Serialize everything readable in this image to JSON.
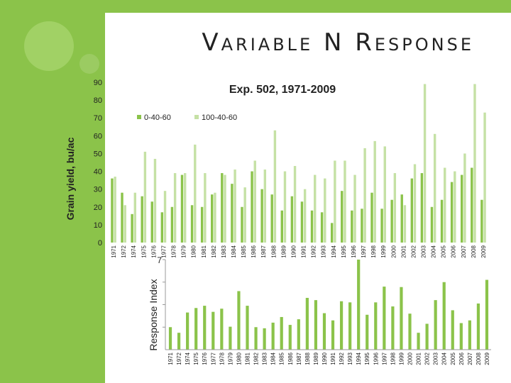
{
  "slide": {
    "title": "Variable N Response",
    "colors": {
      "sidebar": "#8bc34a",
      "bar_dark": "#8bc34a",
      "bar_light": "#c5e1a5"
    }
  },
  "chart_data": [
    {
      "type": "bar",
      "title": "Exp. 502, 1971-2009",
      "ylabel": "Grain yield, bu/ac",
      "xlabel": "",
      "ylim": [
        0,
        90
      ],
      "yticks": [
        0,
        10,
        20,
        30,
        40,
        50,
        60,
        70,
        80,
        90
      ],
      "grid": false,
      "legend_position": "top-center",
      "categories": [
        "1971",
        "1972",
        "1974",
        "1975",
        "1976",
        "1977",
        "1978",
        "1979",
        "1980",
        "1981",
        "1982",
        "1983",
        "1984",
        "1985",
        "1986",
        "1987",
        "1988",
        "1989",
        "1990",
        "1991",
        "1992",
        "1993",
        "1994",
        "1995",
        "1996",
        "1997",
        "1998",
        "1999",
        "2000",
        "2001",
        "2002",
        "2003",
        "2004",
        "2005",
        "2006",
        "2007",
        "2008",
        "2009"
      ],
      "series": [
        {
          "name": "0-40-60",
          "color": "#8bc34a",
          "values": [
            36,
            28,
            16,
            26,
            23,
            17,
            20,
            38,
            21,
            20,
            27,
            39,
            33,
            20,
            40,
            30,
            27,
            18,
            26,
            23,
            18,
            17,
            11,
            29,
            18,
            19,
            28,
            19,
            24,
            27,
            36,
            39,
            20,
            24,
            34,
            38,
            42,
            24
          ]
        },
        {
          "name": "100-40-60",
          "color": "#c5e1a5",
          "values": [
            37,
            21,
            28,
            51,
            47,
            29,
            39,
            39,
            55,
            39,
            28,
            38,
            41,
            31,
            46,
            41,
            63,
            40,
            43,
            30,
            38,
            36,
            46,
            46,
            38,
            53,
            57,
            54,
            39,
            21,
            44,
            89,
            61,
            42,
            40,
            50,
            89,
            73
          ]
        }
      ]
    },
    {
      "type": "bar",
      "title": "",
      "ylabel": "Response Index",
      "xlabel": "",
      "ylim": [
        0,
        4
      ],
      "yticks": [],
      "ytick_visible_label": "7",
      "grid": false,
      "categories": [
        "1971",
        "1972",
        "1974",
        "1975",
        "1976",
        "1977",
        "1978",
        "1979",
        "1980",
        "1981",
        "1982",
        "1983",
        "1984",
        "1985",
        "1986",
        "1987",
        "1988",
        "1989",
        "1990",
        "1991",
        "1992",
        "1993",
        "1994",
        "1995",
        "1996",
        "1997",
        "1998",
        "1999",
        "2000",
        "2001",
        "2002",
        "2003",
        "2004",
        "2005",
        "2006",
        "2007",
        "2008",
        "2009"
      ],
      "series": [
        {
          "name": "",
          "color": "#8bc34a",
          "values": [
            1.0,
            0.75,
            1.65,
            1.85,
            1.95,
            1.68,
            1.82,
            1.02,
            2.6,
            1.95,
            1.0,
            0.95,
            1.2,
            1.45,
            1.1,
            1.35,
            2.3,
            2.2,
            1.62,
            1.3,
            2.15,
            2.1,
            4.0,
            1.55,
            2.1,
            2.8,
            1.92,
            2.78,
            1.6,
            0.75,
            1.15,
            2.2,
            3.0,
            1.75,
            1.18,
            1.3,
            2.05,
            3.1
          ]
        }
      ]
    }
  ]
}
